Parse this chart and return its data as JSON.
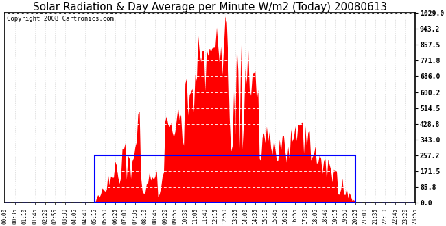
{
  "title": "Solar Radiation & Day Average per Minute W/m2 (Today) 20080613",
  "copyright": "Copyright 2008 Cartronics.com",
  "ymax": 1029.0,
  "yticks": [
    0.0,
    85.8,
    171.5,
    257.2,
    343.0,
    428.8,
    514.5,
    600.2,
    686.0,
    771.8,
    857.5,
    943.2,
    1029.0
  ],
  "day_average": 257.2,
  "bg_color": "#ffffff",
  "radiation_color": "#ff0000",
  "avg_rect_color": "#0000ff",
  "avg_line_color": "#0000ff",
  "grid_color": "#bbbbbb",
  "title_fontsize": 11,
  "copyright_fontsize": 6.5,
  "sunrise_idx": 63,
  "sunset_idx": 245,
  "n_points": 288
}
